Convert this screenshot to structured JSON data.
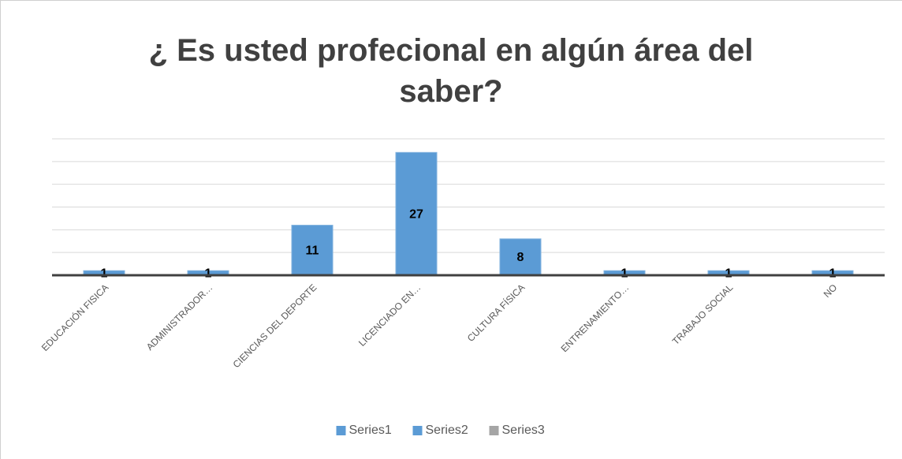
{
  "chart_data": {
    "type": "bar",
    "title": "¿ Es usted profecional en algún área del saber?",
    "categories": [
      "EDUCACIÓN FISICA",
      "ADMINISTRADOR…",
      "CIENCIAS DEL DEPORTE",
      "LICENCIADO EN…",
      "CULTURA FÍSICA",
      "ENTRENAMIENTO…",
      "TRABAJO SOCIAL",
      "NO"
    ],
    "series": [
      {
        "name": "Series1",
        "color": "#5b9bd5",
        "values": [
          1,
          1,
          11,
          27,
          8,
          1,
          1,
          1
        ]
      },
      {
        "name": "Series2",
        "color": "#5b9bd5",
        "values": [
          null,
          null,
          null,
          null,
          null,
          null,
          null,
          null
        ]
      },
      {
        "name": "Series3",
        "color": "#a5a5a5",
        "values": [
          null,
          null,
          null,
          null,
          null,
          null,
          null,
          null
        ]
      }
    ],
    "ylim": [
      0,
      30
    ],
    "yticks": [
      0,
      5,
      10,
      15,
      20,
      25,
      30
    ],
    "grid": true,
    "legend": "bottom"
  }
}
